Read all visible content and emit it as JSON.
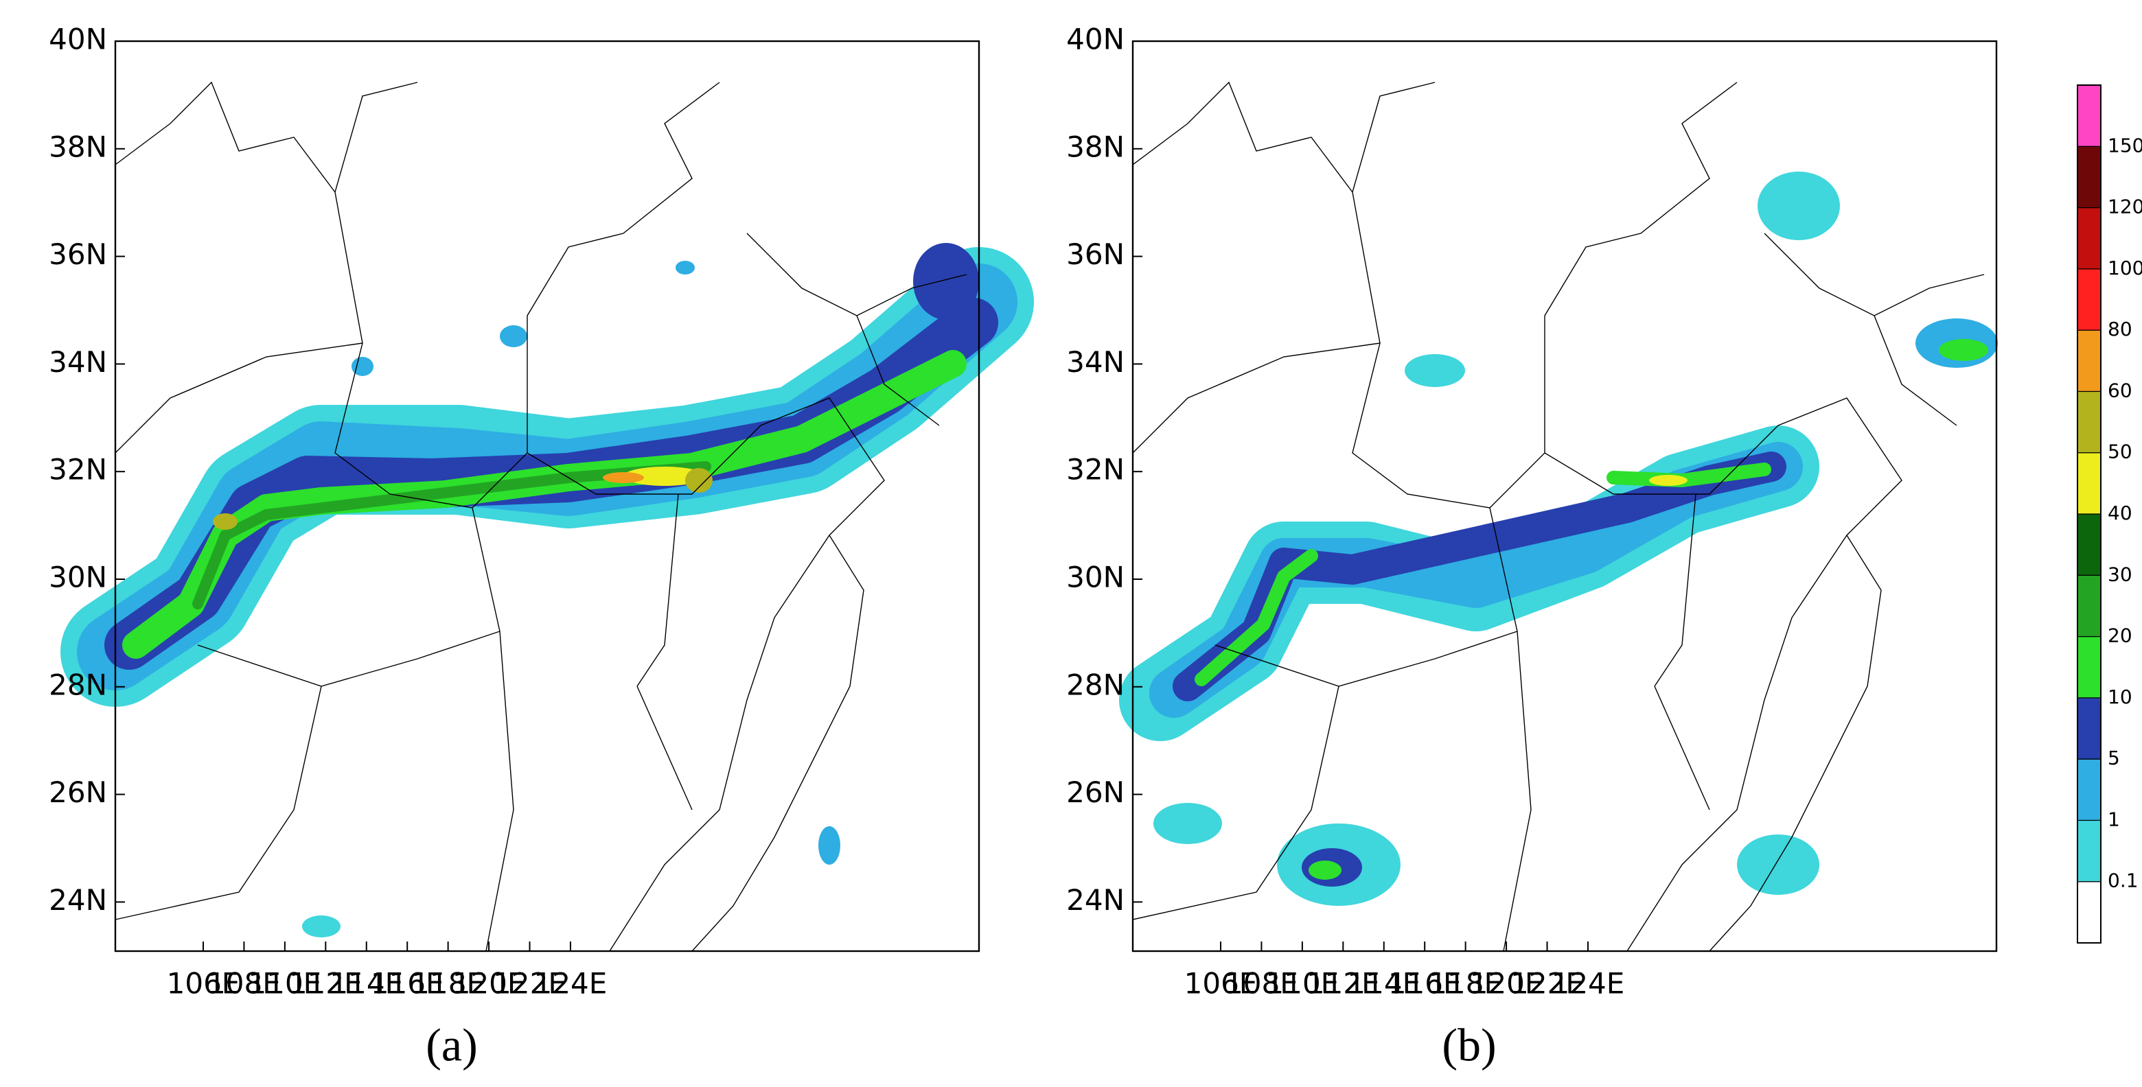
{
  "panels": [
    {
      "label": "(a)",
      "lat_ticks": [
        "40N",
        "38N",
        "36N",
        "34N",
        "32N",
        "30N",
        "28N",
        "26N",
        "24N"
      ],
      "lon_ticks": [
        "106E",
        "108E",
        "110E",
        "112E",
        "114E",
        "116E",
        "118E",
        "120E",
        "122E",
        "124E"
      ]
    },
    {
      "label": "(b)",
      "lat_ticks": [
        "40N",
        "38N",
        "36N",
        "34N",
        "32N",
        "30N",
        "28N",
        "26N",
        "24N"
      ],
      "lon_ticks": [
        "106E",
        "108E",
        "110E",
        "112E",
        "114E",
        "116E",
        "118E",
        "120E",
        "122E",
        "124E"
      ]
    }
  ],
  "colorbar": {
    "levels": [
      0.1,
      1,
      5,
      10,
      20,
      30,
      40,
      50,
      60,
      80,
      100,
      120,
      150
    ],
    "colors": [
      "#ffffff",
      "#3fd6dc",
      "#2eaee2",
      "#283fae",
      "#2ce02c",
      "#23a523",
      "#0c660c",
      "#eded1e",
      "#b3b31e",
      "#f29a1c",
      "#ff2020",
      "#c40f0f",
      "#6e0707",
      "#ff44c4"
    ]
  }
}
